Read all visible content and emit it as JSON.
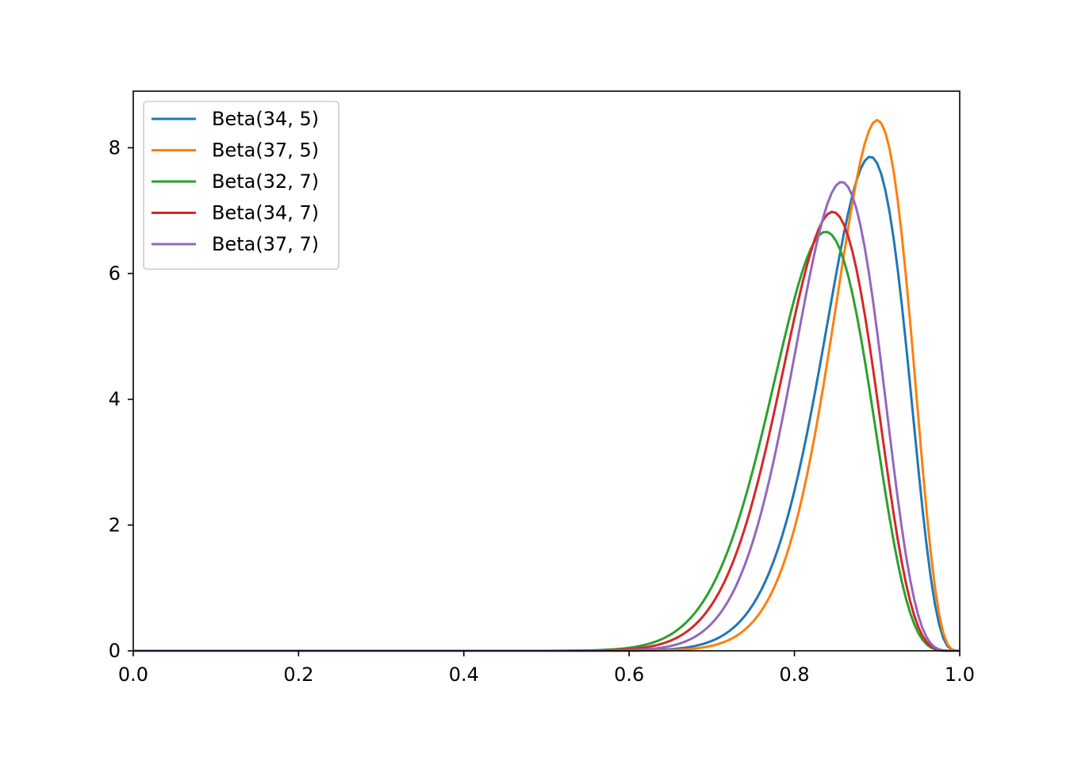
{
  "chart_data": {
    "type": "line",
    "title": "",
    "xlabel": "",
    "ylabel": "",
    "xlim": [
      0.0,
      1.0
    ],
    "ylim": [
      0,
      8.9
    ],
    "xticks": [
      0.0,
      0.2,
      0.4,
      0.6,
      0.8,
      1.0
    ],
    "xtick_labels": [
      "0.0",
      "0.2",
      "0.4",
      "0.6",
      "0.8",
      "1.0"
    ],
    "yticks": [
      0,
      2,
      4,
      6,
      8
    ],
    "ytick_labels": [
      "0",
      "2",
      "4",
      "6",
      "8"
    ],
    "grid": false,
    "legend_position": "upper-left",
    "series": [
      {
        "name": "Beta(34, 5)",
        "alpha": 34,
        "beta": 5,
        "color": "#1f77b4",
        "peak_x": 0.892,
        "peak_y": 7.85
      },
      {
        "name": "Beta(37, 5)",
        "alpha": 37,
        "beta": 5,
        "color": "#ff7f0e",
        "peak_x": 0.9,
        "peak_y": 8.44
      },
      {
        "name": "Beta(32, 7)",
        "alpha": 32,
        "beta": 7,
        "color": "#2ca02c",
        "peak_x": 0.838,
        "peak_y": 6.65
      },
      {
        "name": "Beta(34, 7)",
        "alpha": 34,
        "beta": 7,
        "color": "#d62728",
        "peak_x": 0.846,
        "peak_y": 6.98
      },
      {
        "name": "Beta(37, 7)",
        "alpha": 37,
        "beta": 7,
        "color": "#9467bd",
        "peak_x": 0.857,
        "peak_y": 7.45
      }
    ],
    "x_samples": 200
  }
}
